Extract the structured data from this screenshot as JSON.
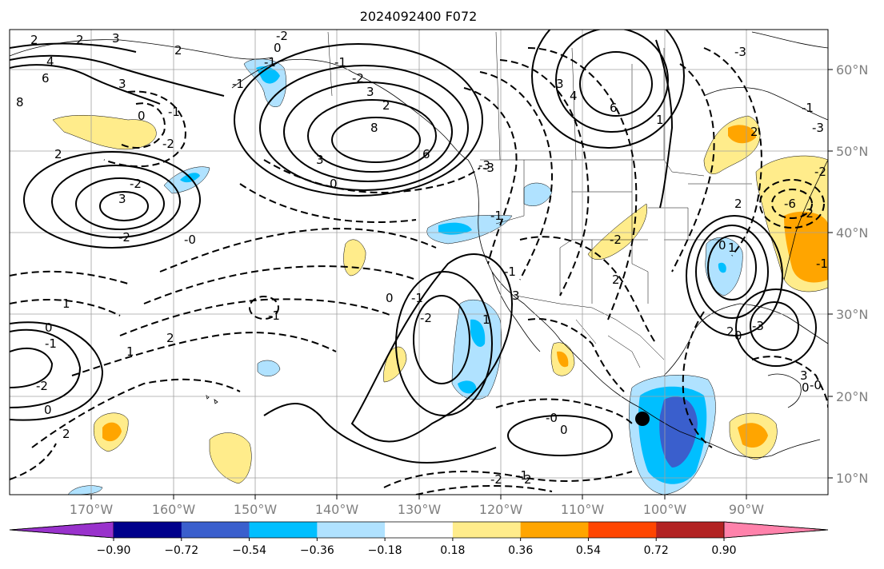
{
  "title": "2024092400 F072",
  "lat_labels": [
    "60°N",
    "50°N",
    "40°N",
    "30°N",
    "20°N",
    "10°N"
  ],
  "lon_labels": [
    "170°W",
    "160°W",
    "150°W",
    "140°W",
    "130°W",
    "120°W",
    "110°W",
    "100°W",
    "90°W"
  ],
  "colorbar": {
    "colors": [
      "#9932cc",
      "#00008b",
      "#3a5fcd",
      "#00bfff",
      "#b0e2ff",
      "#ffffff",
      "#ffec8b",
      "#ffa500",
      "#ff4500",
      "#b22222",
      "#ff82ab"
    ],
    "ticks": [
      "−0.90",
      "−0.72",
      "−0.54",
      "−0.36",
      "−0.18",
      "0.18",
      "0.36",
      "0.54",
      "0.72",
      "0.90"
    ]
  },
  "contour_labels": [
    "2",
    "2",
    "3",
    "4",
    "6",
    "8",
    "3",
    "2",
    "-1",
    "0",
    "-2",
    "2",
    "-2",
    "3",
    "-2",
    "-0",
    "1",
    "0",
    "1",
    "-1",
    "-2",
    "0",
    "2",
    "2",
    "-1",
    "0",
    "-1",
    "-2",
    "-0",
    "0",
    "-2",
    "2",
    "-1",
    "-2",
    "3",
    "2",
    "8",
    "6",
    "3",
    "0",
    "-3",
    "-3",
    "-1",
    "3",
    "4",
    "6",
    "-3",
    "-1",
    "1",
    "-2",
    "-1",
    "2",
    "0",
    "0",
    "-3",
    "2",
    "0",
    "1",
    "-1",
    "0",
    "-2",
    "-1",
    "2",
    "-3",
    "-2",
    "-2",
    "-6",
    "1",
    "-1",
    "2",
    "3",
    "-0",
    "3",
    "-1"
  ],
  "marker": {
    "type": "black-dot"
  },
  "colors": {
    "contour": "#000000",
    "grid": "#a0a0a0",
    "coast": "#000000"
  }
}
